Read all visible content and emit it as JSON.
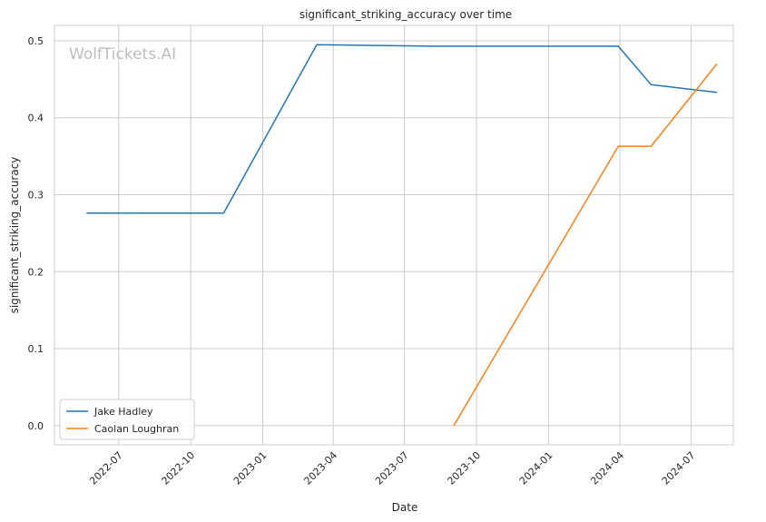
{
  "chart_data": {
    "type": "line",
    "title": "significant_striking_accuracy over time",
    "xlabel": "Date",
    "ylabel": "significant_striking_accuracy",
    "watermark": "WolfTickets.AI",
    "xlim": [
      "2022-04-10",
      "2024-08-24"
    ],
    "ylim": [
      -0.025,
      0.52
    ],
    "x_ticks": [
      "2022-07-01",
      "2022-10-01",
      "2023-01-01",
      "2023-04-01",
      "2023-07-01",
      "2023-10-01",
      "2024-01-01",
      "2024-04-01",
      "2024-07-01"
    ],
    "x_tick_labels": [
      "2022-07",
      "2022-10",
      "2023-01",
      "2023-04",
      "2023-07",
      "2023-10",
      "2024-01",
      "2024-04",
      "2024-07"
    ],
    "y_ticks": [
      0.0,
      0.1,
      0.2,
      0.3,
      0.4,
      0.5
    ],
    "y_tick_labels": [
      "0.0",
      "0.1",
      "0.2",
      "0.3",
      "0.4",
      "0.5"
    ],
    "grid": true,
    "legend_position": "lower-left",
    "series": [
      {
        "name": "Jake Hadley",
        "color": "#1f77b4",
        "points": [
          {
            "x": "2022-05-21",
            "y": 0.276
          },
          {
            "x": "2022-11-12",
            "y": 0.276
          },
          {
            "x": "2023-03-11",
            "y": 0.495
          },
          {
            "x": "2023-08-05",
            "y": 0.493
          },
          {
            "x": "2024-03-30",
            "y": 0.493
          },
          {
            "x": "2024-05-11",
            "y": 0.443
          },
          {
            "x": "2024-08-03",
            "y": 0.433
          }
        ]
      },
      {
        "name": "Caolan Loughran",
        "color": "#ff7f0e",
        "points": [
          {
            "x": "2023-09-02",
            "y": 0.0
          },
          {
            "x": "2024-03-30",
            "y": 0.363
          },
          {
            "x": "2024-05-11",
            "y": 0.363
          },
          {
            "x": "2024-08-03",
            "y": 0.47
          }
        ]
      }
    ]
  }
}
